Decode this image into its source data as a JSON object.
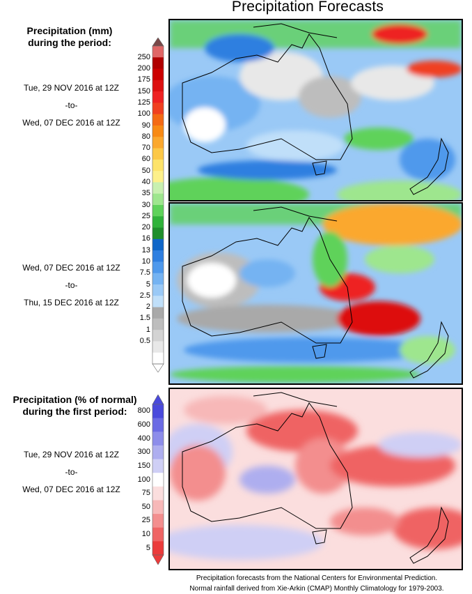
{
  "title": "Precipitation Forecasts",
  "upper_legend": {
    "heading_line1": "Precipitation (mm)",
    "heading_line2": "during the period:",
    "levels": [
      "250",
      "200",
      "175",
      "150",
      "125",
      "100",
      "90",
      "80",
      "70",
      "60",
      "50",
      "40",
      "35",
      "30",
      "25",
      "20",
      "16",
      "13",
      "10",
      "7.5",
      "5",
      "2.5",
      "2",
      "1.5",
      "1",
      "0.5"
    ],
    "colors": [
      "#e06666",
      "#b00000",
      "#cc0000",
      "#dd1111",
      "#ee2222",
      "#f04020",
      "#f46a14",
      "#f88a14",
      "#fba82e",
      "#fcc847",
      "#fde36a",
      "#fdf08a",
      "#c8f0b0",
      "#9ee68e",
      "#5ed25a",
      "#2fb23a",
      "#1f8f2c",
      "#0f66c8",
      "#2f7fe0",
      "#4f99ec",
      "#75b3f2",
      "#9ac9f6",
      "#c0dff9",
      "#a9a9a9",
      "#bdbdbd",
      "#d3d3d3",
      "#e8e8e8",
      "#ffffff"
    ],
    "top_cap_color": "#7a4848"
  },
  "lower_legend": {
    "heading_line1": "Precipitation (% of normal)",
    "heading_line2": "during the first period:",
    "levels": [
      "800",
      "600",
      "400",
      "300",
      "150",
      "100",
      "75",
      "50",
      "25",
      "10",
      "5"
    ],
    "colors": [
      "#4a4adc",
      "#6b6be4",
      "#8d8dea",
      "#aeaeef",
      "#cfcff5",
      "#ffffff",
      "#fbdede",
      "#f7b8b8",
      "#f38e8e",
      "#ef6464",
      "#eb3b3b"
    ]
  },
  "periods": [
    {
      "start": "Tue, 29 NOV 2016 at 12Z",
      "sep": "-to-",
      "end": "Wed, 07 DEC 2016 at 12Z"
    },
    {
      "start": "Wed, 07 DEC 2016 at 12Z",
      "sep": "-to-",
      "end": "Thu, 15 DEC 2016 at 12Z"
    },
    {
      "start": "Tue, 29 NOV 2016 at 12Z",
      "sep": "-to-",
      "end": "Wed, 07 DEC 2016 at 12Z"
    }
  ],
  "footer": {
    "line1": "Precipitation forecasts from the National Centers for Environmental Prediction.",
    "line2": "Normal rainfall derived from Xie-Arkin (CMAP) Monthly Climatology for 1979-2003."
  }
}
